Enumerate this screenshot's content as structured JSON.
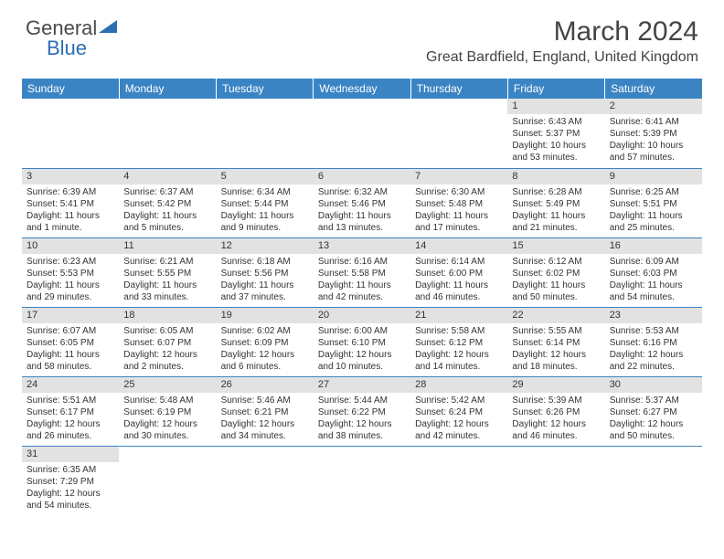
{
  "logo": {
    "part1": "General",
    "part2": "Blue"
  },
  "title": "March 2024",
  "location": "Great Bardfield, England, United Kingdom",
  "colors": {
    "header_bg": "#3b84c4",
    "header_text": "#ffffff",
    "daynum_bg": "#e2e2e2",
    "cell_border": "#3b84c4",
    "text": "#333333",
    "logo_blue": "#2d6fb5",
    "logo_gray": "#4a4a4a"
  },
  "day_headers": [
    "Sunday",
    "Monday",
    "Tuesday",
    "Wednesday",
    "Thursday",
    "Friday",
    "Saturday"
  ],
  "weeks": [
    [
      {
        "empty": true
      },
      {
        "empty": true
      },
      {
        "empty": true
      },
      {
        "empty": true
      },
      {
        "empty": true
      },
      {
        "n": "1",
        "sr": "Sunrise: 6:43 AM",
        "ss": "Sunset: 5:37 PM",
        "d1": "Daylight: 10 hours",
        "d2": "and 53 minutes."
      },
      {
        "n": "2",
        "sr": "Sunrise: 6:41 AM",
        "ss": "Sunset: 5:39 PM",
        "d1": "Daylight: 10 hours",
        "d2": "and 57 minutes."
      }
    ],
    [
      {
        "n": "3",
        "sr": "Sunrise: 6:39 AM",
        "ss": "Sunset: 5:41 PM",
        "d1": "Daylight: 11 hours",
        "d2": "and 1 minute."
      },
      {
        "n": "4",
        "sr": "Sunrise: 6:37 AM",
        "ss": "Sunset: 5:42 PM",
        "d1": "Daylight: 11 hours",
        "d2": "and 5 minutes."
      },
      {
        "n": "5",
        "sr": "Sunrise: 6:34 AM",
        "ss": "Sunset: 5:44 PM",
        "d1": "Daylight: 11 hours",
        "d2": "and 9 minutes."
      },
      {
        "n": "6",
        "sr": "Sunrise: 6:32 AM",
        "ss": "Sunset: 5:46 PM",
        "d1": "Daylight: 11 hours",
        "d2": "and 13 minutes."
      },
      {
        "n": "7",
        "sr": "Sunrise: 6:30 AM",
        "ss": "Sunset: 5:48 PM",
        "d1": "Daylight: 11 hours",
        "d2": "and 17 minutes."
      },
      {
        "n": "8",
        "sr": "Sunrise: 6:28 AM",
        "ss": "Sunset: 5:49 PM",
        "d1": "Daylight: 11 hours",
        "d2": "and 21 minutes."
      },
      {
        "n": "9",
        "sr": "Sunrise: 6:25 AM",
        "ss": "Sunset: 5:51 PM",
        "d1": "Daylight: 11 hours",
        "d2": "and 25 minutes."
      }
    ],
    [
      {
        "n": "10",
        "sr": "Sunrise: 6:23 AM",
        "ss": "Sunset: 5:53 PM",
        "d1": "Daylight: 11 hours",
        "d2": "and 29 minutes."
      },
      {
        "n": "11",
        "sr": "Sunrise: 6:21 AM",
        "ss": "Sunset: 5:55 PM",
        "d1": "Daylight: 11 hours",
        "d2": "and 33 minutes."
      },
      {
        "n": "12",
        "sr": "Sunrise: 6:18 AM",
        "ss": "Sunset: 5:56 PM",
        "d1": "Daylight: 11 hours",
        "d2": "and 37 minutes."
      },
      {
        "n": "13",
        "sr": "Sunrise: 6:16 AM",
        "ss": "Sunset: 5:58 PM",
        "d1": "Daylight: 11 hours",
        "d2": "and 42 minutes."
      },
      {
        "n": "14",
        "sr": "Sunrise: 6:14 AM",
        "ss": "Sunset: 6:00 PM",
        "d1": "Daylight: 11 hours",
        "d2": "and 46 minutes."
      },
      {
        "n": "15",
        "sr": "Sunrise: 6:12 AM",
        "ss": "Sunset: 6:02 PM",
        "d1": "Daylight: 11 hours",
        "d2": "and 50 minutes."
      },
      {
        "n": "16",
        "sr": "Sunrise: 6:09 AM",
        "ss": "Sunset: 6:03 PM",
        "d1": "Daylight: 11 hours",
        "d2": "and 54 minutes."
      }
    ],
    [
      {
        "n": "17",
        "sr": "Sunrise: 6:07 AM",
        "ss": "Sunset: 6:05 PM",
        "d1": "Daylight: 11 hours",
        "d2": "and 58 minutes."
      },
      {
        "n": "18",
        "sr": "Sunrise: 6:05 AM",
        "ss": "Sunset: 6:07 PM",
        "d1": "Daylight: 12 hours",
        "d2": "and 2 minutes."
      },
      {
        "n": "19",
        "sr": "Sunrise: 6:02 AM",
        "ss": "Sunset: 6:09 PM",
        "d1": "Daylight: 12 hours",
        "d2": "and 6 minutes."
      },
      {
        "n": "20",
        "sr": "Sunrise: 6:00 AM",
        "ss": "Sunset: 6:10 PM",
        "d1": "Daylight: 12 hours",
        "d2": "and 10 minutes."
      },
      {
        "n": "21",
        "sr": "Sunrise: 5:58 AM",
        "ss": "Sunset: 6:12 PM",
        "d1": "Daylight: 12 hours",
        "d2": "and 14 minutes."
      },
      {
        "n": "22",
        "sr": "Sunrise: 5:55 AM",
        "ss": "Sunset: 6:14 PM",
        "d1": "Daylight: 12 hours",
        "d2": "and 18 minutes."
      },
      {
        "n": "23",
        "sr": "Sunrise: 5:53 AM",
        "ss": "Sunset: 6:16 PM",
        "d1": "Daylight: 12 hours",
        "d2": "and 22 minutes."
      }
    ],
    [
      {
        "n": "24",
        "sr": "Sunrise: 5:51 AM",
        "ss": "Sunset: 6:17 PM",
        "d1": "Daylight: 12 hours",
        "d2": "and 26 minutes."
      },
      {
        "n": "25",
        "sr": "Sunrise: 5:48 AM",
        "ss": "Sunset: 6:19 PM",
        "d1": "Daylight: 12 hours",
        "d2": "and 30 minutes."
      },
      {
        "n": "26",
        "sr": "Sunrise: 5:46 AM",
        "ss": "Sunset: 6:21 PM",
        "d1": "Daylight: 12 hours",
        "d2": "and 34 minutes."
      },
      {
        "n": "27",
        "sr": "Sunrise: 5:44 AM",
        "ss": "Sunset: 6:22 PM",
        "d1": "Daylight: 12 hours",
        "d2": "and 38 minutes."
      },
      {
        "n": "28",
        "sr": "Sunrise: 5:42 AM",
        "ss": "Sunset: 6:24 PM",
        "d1": "Daylight: 12 hours",
        "d2": "and 42 minutes."
      },
      {
        "n": "29",
        "sr": "Sunrise: 5:39 AM",
        "ss": "Sunset: 6:26 PM",
        "d1": "Daylight: 12 hours",
        "d2": "and 46 minutes."
      },
      {
        "n": "30",
        "sr": "Sunrise: 5:37 AM",
        "ss": "Sunset: 6:27 PM",
        "d1": "Daylight: 12 hours",
        "d2": "and 50 minutes."
      }
    ],
    [
      {
        "n": "31",
        "sr": "Sunrise: 6:35 AM",
        "ss": "Sunset: 7:29 PM",
        "d1": "Daylight: 12 hours",
        "d2": "and 54 minutes."
      },
      {
        "empty": true
      },
      {
        "empty": true
      },
      {
        "empty": true
      },
      {
        "empty": true
      },
      {
        "empty": true
      },
      {
        "empty": true
      }
    ]
  ]
}
